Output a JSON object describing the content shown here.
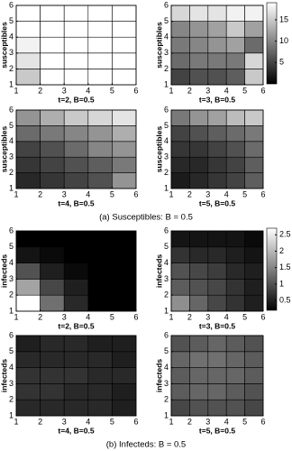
{
  "chart_data": [
    {
      "type": "heatmap",
      "ylabel": "susceptibles",
      "xlabel": "t=2, B=0.5",
      "xlim": [
        1,
        6
      ],
      "ylim": [
        1,
        6
      ],
      "xticks": [
        1,
        2,
        3,
        4,
        5,
        6
      ],
      "yticks": [
        1,
        2,
        3,
        4,
        5,
        6
      ],
      "zlim": [
        0,
        19
      ],
      "z": [
        [
          15,
          19,
          19,
          19,
          19
        ],
        [
          17,
          19,
          19,
          19,
          19
        ],
        [
          18,
          19,
          19,
          19,
          19
        ],
        [
          19,
          19,
          19,
          19,
          19
        ],
        [
          19,
          19,
          19,
          19,
          19
        ]
      ]
    },
    {
      "type": "heatmap",
      "ylabel": "susceptibles",
      "xlabel": "t=3, B=0.5",
      "xlim": [
        1,
        6
      ],
      "ylim": [
        1,
        6
      ],
      "xticks": [
        1,
        2,
        3,
        4,
        5,
        6
      ],
      "yticks": [
        1,
        2,
        3,
        4,
        5,
        6
      ],
      "zlim": [
        0,
        19
      ],
      "zticks": [
        5,
        10,
        15
      ],
      "z": [
        [
          5,
          6,
          6,
          7,
          15
        ],
        [
          8,
          9,
          9,
          9,
          16
        ],
        [
          9,
          10,
          11,
          12,
          8
        ],
        [
          10,
          11,
          12,
          15,
          12
        ],
        [
          16,
          17,
          17,
          18,
          18
        ]
      ]
    },
    {
      "type": "heatmap",
      "ylabel": "susceptibles",
      "xlabel": "t=4, B=0.5",
      "xlim": [
        1,
        6
      ],
      "ylim": [
        1,
        6
      ],
      "xticks": [
        1,
        2,
        3,
        4,
        5,
        6
      ],
      "yticks": [
        1,
        2,
        3,
        4,
        5,
        6
      ],
      "zlim": [
        0,
        19
      ],
      "z": [
        [
          3,
          4,
          5,
          6,
          11
        ],
        [
          4,
          5,
          6,
          7,
          9
        ],
        [
          5,
          6,
          8,
          10,
          11
        ],
        [
          8,
          9,
          10,
          11,
          13
        ],
        [
          11,
          13,
          15,
          16,
          17
        ]
      ]
    },
    {
      "type": "heatmap",
      "ylabel": "susceptibles",
      "xlabel": "t=5, B=0.5",
      "xlim": [
        1,
        6
      ],
      "ylim": [
        1,
        6
      ],
      "xticks": [
        1,
        2,
        3,
        4,
        5,
        6
      ],
      "yticks": [
        1,
        2,
        3,
        4,
        5,
        6
      ],
      "zlim": [
        0,
        19
      ],
      "z": [
        [
          2,
          3,
          4,
          5,
          7
        ],
        [
          3,
          3,
          4,
          5,
          7
        ],
        [
          4,
          4,
          5,
          6,
          8
        ],
        [
          5,
          6,
          7,
          8,
          9
        ],
        [
          9,
          11,
          12,
          14,
          15
        ]
      ]
    },
    {
      "type": "heatmap",
      "ylabel": "infecteds",
      "xlabel": "t=2, B=0.5",
      "xlim": [
        1,
        6
      ],
      "ylim": [
        1,
        6
      ],
      "xticks": [
        1,
        2,
        3,
        4,
        5,
        6
      ],
      "yticks": [
        1,
        2,
        3,
        4,
        5,
        6
      ],
      "zlim": [
        0.2,
        2.7
      ],
      "z": [
        [
          2.7,
          1.3,
          0.6,
          0.2,
          0.2
        ],
        [
          1.8,
          0.9,
          0.5,
          0.2,
          0.2
        ],
        [
          1.0,
          0.5,
          0.3,
          0.2,
          0.2
        ],
        [
          0.4,
          0.3,
          0.2,
          0.2,
          0.2
        ],
        [
          0.2,
          0.2,
          0.2,
          0.2,
          0.2
        ]
      ]
    },
    {
      "type": "heatmap",
      "ylabel": "infecteds",
      "xlabel": "t=3, B=0.5",
      "xlim": [
        1,
        6
      ],
      "ylim": [
        1,
        6
      ],
      "xticks": [
        1,
        2,
        3,
        4,
        5,
        6
      ],
      "yticks": [
        1,
        2,
        3,
        4,
        5,
        6
      ],
      "zlim": [
        0.2,
        2.7
      ],
      "zticks": [
        0.5,
        1,
        1.5,
        2,
        2.5
      ],
      "z": [
        [
          1.6,
          1.2,
          0.9,
          0.7,
          0.5
        ],
        [
          1.1,
          1.0,
          0.9,
          0.7,
          0.5
        ],
        [
          1.0,
          0.9,
          0.8,
          0.6,
          0.5
        ],
        [
          0.7,
          0.6,
          0.6,
          0.5,
          0.4
        ],
        [
          0.4,
          0.4,
          0.4,
          0.4,
          0.3
        ]
      ]
    },
    {
      "type": "heatmap",
      "ylabel": "infecteds",
      "xlabel": "t=4, B=0.5",
      "xlim": [
        1,
        6
      ],
      "ylim": [
        1,
        6
      ],
      "xticks": [
        1,
        2,
        3,
        4,
        5,
        6
      ],
      "yticks": [
        1,
        2,
        3,
        4,
        5,
        6
      ],
      "zlim": [
        0.2,
        2.7
      ],
      "z": [
        [
          0.6,
          0.6,
          0.6,
          0.6,
          0.5
        ],
        [
          0.7,
          0.7,
          0.6,
          0.6,
          0.5
        ],
        [
          0.7,
          0.7,
          0.7,
          0.6,
          0.6
        ],
        [
          0.6,
          0.6,
          0.6,
          0.6,
          0.5
        ],
        [
          0.5,
          0.6,
          0.6,
          0.5,
          0.5
        ]
      ]
    },
    {
      "type": "heatmap",
      "ylabel": "infecteds",
      "xlabel": "t=5, B=0.5",
      "xlim": [
        1,
        6
      ],
      "ylim": [
        1,
        6
      ],
      "xticks": [
        1,
        2,
        3,
        4,
        5,
        6
      ],
      "yticks": [
        1,
        2,
        3,
        4,
        5,
        6
      ],
      "zlim": [
        0.2,
        2.7
      ],
      "z": [
        [
          0.9,
          1.0,
          1.0,
          1.0,
          0.9
        ],
        [
          1.1,
          1.2,
          1.2,
          1.1,
          1.0
        ],
        [
          1.1,
          1.2,
          1.2,
          1.2,
          1.1
        ],
        [
          1.2,
          1.3,
          1.3,
          1.2,
          1.1
        ],
        [
          1.0,
          1.1,
          1.2,
          1.1,
          1.0
        ]
      ]
    }
  ],
  "captions": [
    "(a) Susceptibles: B = 0.5",
    "(b) Infecteds: B = 0.5"
  ]
}
